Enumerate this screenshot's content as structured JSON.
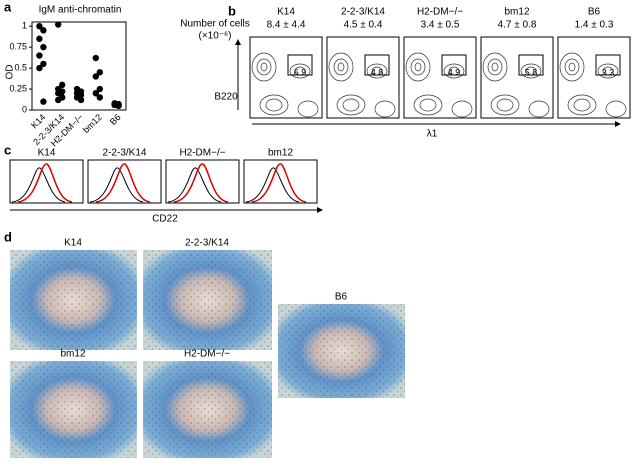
{
  "chart_data": {
    "type": "strip",
    "panel_label": "a",
    "title": "IgM anti-chromatin",
    "y_label": "OD",
    "categories": [
      "K14",
      "2-2-3/K14",
      "H2-DM−/−",
      "bm12",
      "B6"
    ],
    "values": [
      [
        1.0,
        0.95,
        0.85,
        0.75,
        0.65,
        0.55,
        0.5,
        0.1
      ],
      [
        1.02,
        0.3,
        0.25,
        0.22,
        0.2,
        0.15,
        0.12
      ],
      [
        0.25,
        0.22,
        0.2,
        0.18,
        0.15,
        0.12
      ],
      [
        0.62,
        0.45,
        0.4,
        0.25,
        0.2,
        0.15
      ],
      [
        0.08,
        0.07,
        0.06,
        0.05
      ]
    ],
    "color": "#000000",
    "ylim": [
      0,
      1.05
    ],
    "yticks": [
      0,
      0.25,
      0.5,
      0.75,
      1
    ]
  },
  "panel_b": {
    "panel_label": "b",
    "header": "Number of cells",
    "header_unit": "(×10⁻⁶)",
    "y_axis": "B220",
    "x_axis": "λ1",
    "plots": [
      {
        "name": "K14",
        "count": "8.4 ± 4.4",
        "gate": 6.9
      },
      {
        "name": "2-2-3/K14",
        "count": "4.5 ± 0.4",
        "gate": 4.8
      },
      {
        "name": "H2-DM−/−",
        "count": "3.4 ± 0.5",
        "gate": 4.9
      },
      {
        "name": "bm12",
        "count": "4.7 ± 0.8",
        "gate": 5.8
      },
      {
        "name": "B6",
        "count": "1.4 ± 0.3",
        "gate": 3.3
      }
    ]
  },
  "panel_c": {
    "panel_label": "c",
    "x_axis": "CD22",
    "plots": [
      "K14",
      "2-2-3/K14",
      "H2-DM−/−",
      "bm12"
    ]
  },
  "panel_d": {
    "panel_label": "d",
    "images": [
      "K14",
      "2-2-3/K14",
      "B6",
      "bm12",
      "H2-DM−/−"
    ]
  }
}
